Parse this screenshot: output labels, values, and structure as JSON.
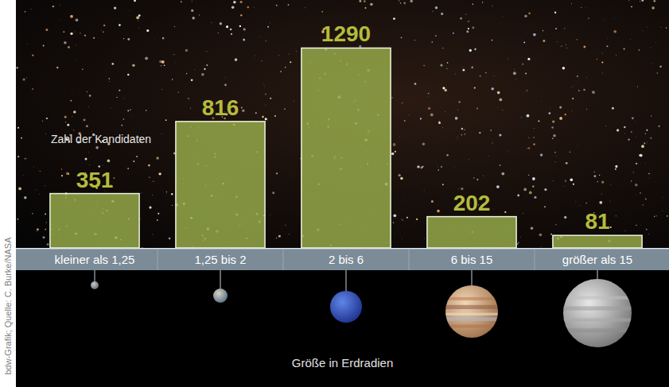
{
  "chart_data": {
    "type": "bar",
    "y_label": "Zahl der Kandidaten",
    "x_label": "Größe in Erdradien",
    "source": "bdw-Grafik; Quelle: C. Burke/NASA",
    "categories": [
      "kleiner als 1,25",
      "1,25 bis 2",
      "2 bis 6",
      "6 bis 15",
      "größer als 15"
    ],
    "values": [
      351,
      816,
      1290,
      202,
      81
    ],
    "color": "#9aae4c",
    "ylim": [
      0,
      1600
    ],
    "data_labels": true,
    "tick_labels": "x"
  }
}
